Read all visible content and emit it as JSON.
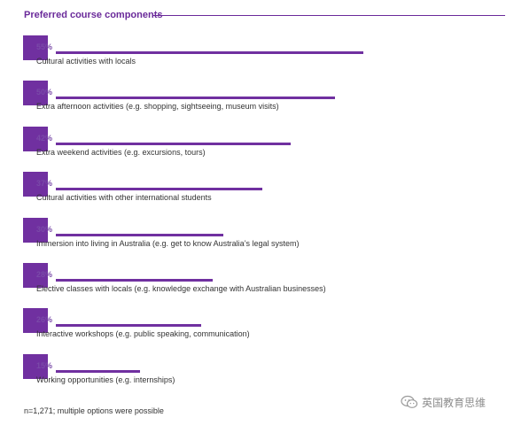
{
  "chart_data": {
    "type": "bar",
    "orientation": "horizontal",
    "title": "Preferred course components",
    "categories": [
      "Cultural activities with locals",
      "Extra afternoon activities (e.g. shopping, sightseeing, museum visits)",
      "Extra weekend activities (e.g. excursions, tours)",
      "Cultural activities with other international students",
      "Immersion into living in Australia (e.g. get to know Australia’s legal system)",
      "Elective classes with locals (e.g. knowledge exchange with Australian businesses)",
      "Interactive workshops (e.g. public speaking, communication)",
      "Working opportunities (e.g. internships)"
    ],
    "values": [
      55,
      50,
      42,
      37,
      30,
      28,
      26,
      15
    ],
    "value_labels": [
      "55%",
      "50%",
      "42%",
      "37%",
      "30%",
      "28%",
      "26%",
      "15%"
    ],
    "unit": "%",
    "xlim": [
      0,
      65
    ],
    "grid": false,
    "legend": "none",
    "colors": {
      "bar": "#7030a0",
      "title": "#6a2a9a"
    }
  },
  "footnote": "n=1,271; multiple options were possible",
  "watermark": {
    "icon": "wechat-icon",
    "text": "英国教育思维"
  }
}
